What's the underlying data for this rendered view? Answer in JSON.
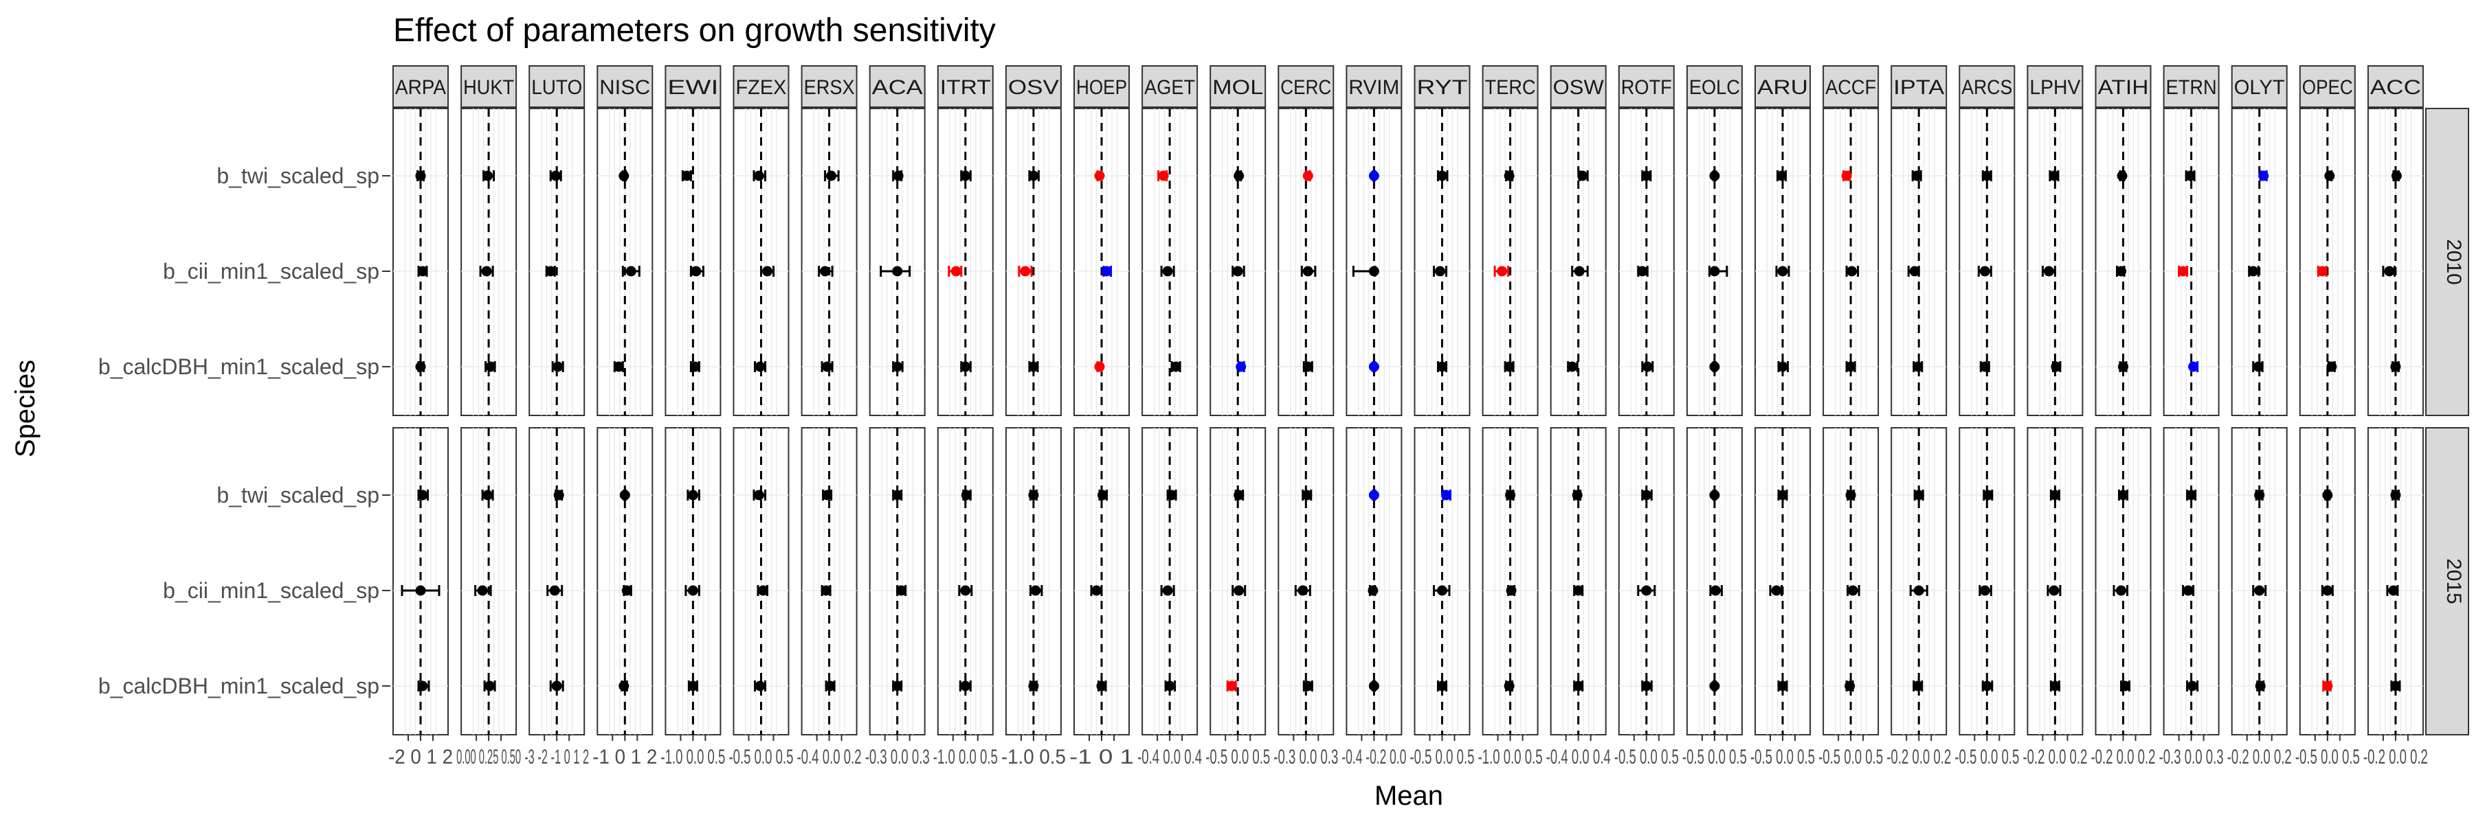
{
  "chart_data": {
    "type": "scatter",
    "title": "Effect of parameters on growth sensitivity",
    "xlabel": "Mean",
    "ylabel": "Species",
    "rows": [
      "b_twi_scaled_sp",
      "b_cii_min1_scaled_sp",
      "b_calcDBH_min1_scaled_sp"
    ],
    "years": [
      "2010",
      "2015"
    ],
    "species": [
      "ARPA",
      "HUKT",
      "LUTO",
      "NISC",
      "EWI",
      "FZEX",
      "ERSX",
      "ACA",
      "ITRT",
      "OSV",
      "HOEP",
      "AGET",
      "MOL",
      "CERC",
      "RVIM",
      "RYT",
      "TERC",
      "OSW",
      "ROTF",
      "EOLC",
      "ARU",
      "ACCF",
      "IPTA",
      "ARCS",
      "LPHV",
      "ATIH",
      "ETRN",
      "OLYT",
      "OPEC",
      "ACC"
    ],
    "xtick_labels": [
      "-2 0 1 2",
      "0.00 0.25 0.50",
      "-3 -2 -1 0 1 2",
      "-1 0 1 2",
      "-1.0 0.0 0.5",
      "-0.5 0.0 0.5",
      "-0.4 0.0 0.2",
      "-0.3 0.0 0.3",
      "-1.0 0.0 0.5",
      "-1.0 0.5",
      "-1 0 1",
      "-0.4 0.0 0.4",
      "-0.5 0.0 0.5",
      "-0.3 0.0 0.3",
      "-0.4 -0.2 0.0",
      "-0.5 0.0 0.5",
      "-1.0 0.0 0.5",
      "-0.4 0.0 0.4",
      "-0.5 0.0 0.5",
      "-0.5 0.0 0.5",
      "-0.5 0.0 0.5",
      "-0.5 0.0 0.5",
      "-0.2 0.0 0.2",
      "-0.5 0.0 0.5",
      "-0.2 0.0 0.2",
      "-0.2 0.0 0.2",
      "-0.3 0.0 0.3",
      "-0.2 0.0 0.2",
      "-0.5 0.0 0.5",
      "-0.2 0.0 0.2"
    ],
    "xlim": [
      -1,
      1
    ],
    "reference_line": 0,
    "legend": "none",
    "grid": true,
    "color_key": {
      "neutral": "#000000",
      "negative": "#ff0000",
      "positive": "#0000ff"
    },
    "points": {
      "2010": [
        [
          [
            0.0,
            -0.15,
            0.15,
            "k"
          ],
          [
            0.1,
            -0.1,
            0.3,
            "k"
          ],
          [
            0.0,
            -0.1,
            0.15,
            "k"
          ]
        ],
        [
          [
            -0.05,
            -0.25,
            0.25,
            "k"
          ],
          [
            -0.1,
            -0.4,
            0.2,
            "k"
          ],
          [
            0.1,
            -0.15,
            0.3,
            "k"
          ]
        ],
        [
          [
            -0.05,
            -0.3,
            0.2,
            "k"
          ],
          [
            -0.3,
            -0.5,
            -0.1,
            "k"
          ],
          [
            0.05,
            -0.2,
            0.3,
            "k"
          ]
        ],
        [
          [
            -0.05,
            -0.1,
            0.05,
            "k"
          ],
          [
            0.3,
            -0.1,
            0.7,
            "k"
          ],
          [
            -0.3,
            -0.5,
            -0.1,
            "k"
          ]
        ],
        [
          [
            -0.3,
            -0.5,
            -0.1,
            "k"
          ],
          [
            0.15,
            -0.1,
            0.5,
            "k"
          ],
          [
            0.1,
            -0.1,
            0.3,
            "k"
          ]
        ],
        [
          [
            -0.1,
            -0.35,
            0.2,
            "k"
          ],
          [
            0.3,
            0.0,
            0.6,
            "k"
          ],
          [
            -0.05,
            -0.3,
            0.2,
            "k"
          ]
        ],
        [
          [
            0.1,
            -0.2,
            0.45,
            "k"
          ],
          [
            -0.2,
            -0.5,
            0.15,
            "k"
          ],
          [
            -0.1,
            -0.35,
            0.15,
            "k"
          ]
        ],
        [
          [
            0.05,
            -0.2,
            0.2,
            "k"
          ],
          [
            0.0,
            -0.8,
            0.6,
            "k"
          ],
          [
            0.0,
            -0.2,
            0.25,
            "k"
          ]
        ],
        [
          [
            0.0,
            -0.2,
            0.25,
            "k"
          ],
          [
            -0.45,
            -0.8,
            -0.2,
            "r"
          ],
          [
            0.0,
            -0.2,
            0.25,
            "k"
          ]
        ],
        [
          [
            0.0,
            -0.2,
            0.25,
            "k"
          ],
          [
            -0.4,
            -0.7,
            -0.1,
            "r"
          ],
          [
            0.0,
            -0.2,
            0.2,
            "k"
          ]
        ],
        [
          [
            -0.1,
            -0.2,
            0.0,
            "r"
          ],
          [
            0.25,
            0.1,
            0.45,
            "b"
          ],
          [
            -0.1,
            -0.2,
            0.0,
            "r"
          ]
        ],
        [
          [
            -0.3,
            -0.55,
            -0.15,
            "r"
          ],
          [
            -0.1,
            -0.4,
            0.2,
            "k"
          ],
          [
            0.3,
            0.1,
            0.5,
            "k"
          ]
        ],
        [
          [
            0.05,
            -0.05,
            0.15,
            "k"
          ],
          [
            0.0,
            -0.25,
            0.3,
            "k"
          ],
          [
            0.15,
            0.05,
            0.3,
            "b"
          ]
        ],
        [
          [
            0.1,
            0.0,
            0.2,
            "r"
          ],
          [
            0.1,
            -0.2,
            0.45,
            "k"
          ],
          [
            0.1,
            -0.1,
            0.3,
            "k"
          ]
        ],
        [
          [
            0.0,
            -0.05,
            0.05,
            "b"
          ],
          [
            0.0,
            -1.0,
            0.05,
            "k"
          ],
          [
            0.0,
            -0.05,
            0.05,
            "b"
          ]
        ],
        [
          [
            0.0,
            -0.2,
            0.25,
            "k"
          ],
          [
            -0.1,
            -0.4,
            0.2,
            "k"
          ],
          [
            0.0,
            -0.2,
            0.2,
            "k"
          ]
        ],
        [
          [
            -0.05,
            -0.2,
            0.1,
            "k"
          ],
          [
            -0.4,
            -0.75,
            -0.1,
            "r"
          ],
          [
            -0.05,
            -0.25,
            0.15,
            "k"
          ]
        ],
        [
          [
            0.2,
            0.05,
            0.45,
            "k"
          ],
          [
            0.05,
            -0.3,
            0.45,
            "k"
          ],
          [
            -0.3,
            -0.5,
            -0.05,
            "k"
          ]
        ],
        [
          [
            0.0,
            -0.2,
            0.2,
            "k"
          ],
          [
            -0.2,
            -0.4,
            0.05,
            "k"
          ],
          [
            0.05,
            -0.2,
            0.3,
            "k"
          ]
        ],
        [
          [
            0.0,
            -0.05,
            0.05,
            "k"
          ],
          [
            0.0,
            -0.25,
            0.6,
            "k"
          ],
          [
            0.0,
            -0.05,
            0.05,
            "k"
          ]
        ],
        [
          [
            -0.05,
            -0.25,
            0.15,
            "k"
          ],
          [
            0.0,
            -0.3,
            0.3,
            "k"
          ],
          [
            0.0,
            -0.2,
            0.25,
            "k"
          ]
        ],
        [
          [
            -0.2,
            -0.35,
            -0.05,
            "r"
          ],
          [
            0.05,
            -0.2,
            0.35,
            "k"
          ],
          [
            0.0,
            -0.2,
            0.2,
            "k"
          ]
        ],
        [
          [
            -0.1,
            -0.3,
            0.1,
            "k"
          ],
          [
            -0.2,
            -0.5,
            0.0,
            "k"
          ],
          [
            -0.05,
            -0.25,
            0.15,
            "k"
          ]
        ],
        [
          [
            0.0,
            -0.2,
            0.2,
            "k"
          ],
          [
            -0.1,
            -0.4,
            0.2,
            "k"
          ],
          [
            -0.1,
            -0.3,
            0.1,
            "k"
          ]
        ],
        [
          [
            -0.05,
            -0.25,
            0.15,
            "k"
          ],
          [
            -0.3,
            -0.6,
            0.0,
            "k"
          ],
          [
            0.05,
            -0.1,
            0.25,
            "k"
          ]
        ],
        [
          [
            -0.05,
            -0.15,
            0.05,
            "k"
          ],
          [
            -0.1,
            -0.3,
            0.05,
            "k"
          ],
          [
            0.0,
            -0.15,
            0.15,
            "k"
          ]
        ],
        [
          [
            -0.05,
            -0.25,
            0.15,
            "k"
          ],
          [
            -0.4,
            -0.6,
            -0.2,
            "r"
          ],
          [
            0.1,
            0.0,
            0.3,
            "b"
          ]
        ],
        [
          [
            0.2,
            0.05,
            0.35,
            "b"
          ],
          [
            -0.3,
            -0.5,
            -0.05,
            "k"
          ],
          [
            -0.05,
            -0.3,
            0.15,
            "k"
          ]
        ],
        [
          [
            0.1,
            0.0,
            0.2,
            "k"
          ],
          [
            -0.25,
            -0.45,
            -0.05,
            "r"
          ],
          [
            0.2,
            0.05,
            0.35,
            "k"
          ]
        ],
        [
          [
            0.05,
            -0.1,
            0.15,
            "k"
          ],
          [
            -0.3,
            -0.6,
            -0.05,
            "k"
          ],
          [
            0.0,
            -0.15,
            0.15,
            "k"
          ]
        ]
      ],
      "2015": [
        [
          [
            0.1,
            -0.1,
            0.35,
            "k"
          ],
          [
            0.0,
            -0.9,
            0.9,
            "k"
          ],
          [
            0.1,
            -0.1,
            0.4,
            "k"
          ]
        ],
        [
          [
            -0.05,
            -0.3,
            0.2,
            "k"
          ],
          [
            -0.3,
            -0.65,
            0.1,
            "k"
          ],
          [
            0.05,
            -0.2,
            0.3,
            "k"
          ]
        ],
        [
          [
            0.1,
            -0.05,
            0.25,
            "k"
          ],
          [
            -0.1,
            -0.45,
            0.25,
            "k"
          ],
          [
            0.0,
            -0.3,
            0.3,
            "k"
          ]
        ],
        [
          [
            0.0,
            -0.05,
            0.05,
            "k"
          ],
          [
            0.1,
            -0.05,
            0.3,
            "k"
          ],
          [
            -0.05,
            -0.15,
            0.1,
            "k"
          ]
        ],
        [
          [
            0.0,
            -0.25,
            0.3,
            "k"
          ],
          [
            0.0,
            -0.35,
            0.3,
            "k"
          ],
          [
            0.0,
            -0.2,
            0.2,
            "k"
          ]
        ],
        [
          [
            -0.1,
            -0.35,
            0.2,
            "k"
          ],
          [
            0.1,
            -0.15,
            0.3,
            "k"
          ],
          [
            -0.05,
            -0.3,
            0.2,
            "k"
          ]
        ],
        [
          [
            -0.1,
            -0.3,
            0.1,
            "k"
          ],
          [
            -0.15,
            -0.35,
            0.05,
            "k"
          ],
          [
            0.05,
            -0.15,
            0.25,
            "k"
          ]
        ],
        [
          [
            0.0,
            -0.2,
            0.2,
            "k"
          ],
          [
            0.2,
            0.0,
            0.4,
            "k"
          ],
          [
            0.0,
            -0.2,
            0.2,
            "k"
          ]
        ],
        [
          [
            0.05,
            -0.1,
            0.25,
            "k"
          ],
          [
            0.0,
            -0.3,
            0.3,
            "k"
          ],
          [
            0.0,
            -0.25,
            0.25,
            "k"
          ]
        ],
        [
          [
            0.0,
            -0.15,
            0.15,
            "k"
          ],
          [
            0.1,
            -0.15,
            0.4,
            "k"
          ],
          [
            0.0,
            -0.15,
            0.15,
            "k"
          ]
        ],
        [
          [
            0.05,
            -0.1,
            0.25,
            "k"
          ],
          [
            -0.25,
            -0.5,
            0.0,
            "k"
          ],
          [
            0.0,
            -0.15,
            0.2,
            "k"
          ]
        ],
        [
          [
            0.1,
            -0.1,
            0.3,
            "k"
          ],
          [
            -0.1,
            -0.4,
            0.2,
            "k"
          ],
          [
            0.0,
            -0.2,
            0.25,
            "k"
          ]
        ],
        [
          [
            0.05,
            -0.1,
            0.25,
            "k"
          ],
          [
            0.05,
            -0.25,
            0.35,
            "k"
          ],
          [
            -0.3,
            -0.5,
            -0.1,
            "r"
          ]
        ],
        [
          [
            0.05,
            -0.15,
            0.25,
            "k"
          ],
          [
            -0.15,
            -0.5,
            0.2,
            "k"
          ],
          [
            0.1,
            -0.1,
            0.3,
            "k"
          ]
        ],
        [
          [
            0.0,
            -0.05,
            0.05,
            "b"
          ],
          [
            -0.05,
            -0.2,
            0.05,
            "k"
          ],
          [
            0.0,
            -0.05,
            0.05,
            "k"
          ]
        ],
        [
          [
            0.2,
            0.05,
            0.4,
            "b"
          ],
          [
            0.0,
            -0.4,
            0.35,
            "k"
          ],
          [
            0.0,
            -0.2,
            0.2,
            "k"
          ]
        ],
        [
          [
            0.0,
            -0.15,
            0.15,
            "k"
          ],
          [
            0.05,
            -0.1,
            0.2,
            "k"
          ],
          [
            -0.05,
            -0.2,
            0.1,
            "k"
          ]
        ],
        [
          [
            -0.05,
            -0.2,
            0.1,
            "k"
          ],
          [
            0.0,
            -0.2,
            0.2,
            "k"
          ],
          [
            0.0,
            -0.2,
            0.2,
            "k"
          ]
        ],
        [
          [
            0.0,
            -0.2,
            0.25,
            "k"
          ],
          [
            0.0,
            -0.4,
            0.4,
            "k"
          ],
          [
            0.0,
            -0.2,
            0.25,
            "k"
          ]
        ],
        [
          [
            0.0,
            -0.05,
            0.05,
            "k"
          ],
          [
            0.05,
            -0.2,
            0.35,
            "k"
          ],
          [
            0.0,
            -0.05,
            0.05,
            "k"
          ]
        ],
        [
          [
            0.0,
            -0.2,
            0.2,
            "k"
          ],
          [
            -0.3,
            -0.6,
            -0.05,
            "k"
          ],
          [
            0.0,
            -0.2,
            0.2,
            "k"
          ]
        ],
        [
          [
            0.0,
            -0.15,
            0.15,
            "k"
          ],
          [
            0.1,
            -0.15,
            0.4,
            "k"
          ],
          [
            -0.05,
            -0.2,
            0.1,
            "k"
          ]
        ],
        [
          [
            0.0,
            -0.2,
            0.2,
            "k"
          ],
          [
            0.0,
            -0.4,
            0.4,
            "k"
          ],
          [
            -0.05,
            -0.25,
            0.15,
            "k"
          ]
        ],
        [
          [
            0.05,
            -0.15,
            0.25,
            "k"
          ],
          [
            -0.1,
            -0.35,
            0.2,
            "k"
          ],
          [
            0.0,
            -0.2,
            0.25,
            "k"
          ]
        ],
        [
          [
            0.0,
            -0.2,
            0.2,
            "k"
          ],
          [
            -0.05,
            -0.35,
            0.25,
            "k"
          ],
          [
            0.0,
            -0.2,
            0.2,
            "k"
          ]
        ],
        [
          [
            0.0,
            -0.2,
            0.2,
            "k"
          ],
          [
            -0.1,
            -0.45,
            0.2,
            "k"
          ],
          [
            0.1,
            -0.1,
            0.3,
            "k"
          ]
        ],
        [
          [
            0.0,
            -0.2,
            0.2,
            "k"
          ],
          [
            -0.15,
            -0.4,
            0.1,
            "k"
          ],
          [
            0.05,
            -0.2,
            0.3,
            "k"
          ]
        ],
        [
          [
            0.0,
            -0.15,
            0.15,
            "k"
          ],
          [
            0.0,
            -0.3,
            0.3,
            "k"
          ],
          [
            0.05,
            -0.1,
            0.2,
            "k"
          ]
        ],
        [
          [
            0.0,
            -0.1,
            0.1,
            "k"
          ],
          [
            0.0,
            -0.25,
            0.25,
            "k"
          ],
          [
            0.0,
            -0.2,
            0.15,
            "r"
          ]
        ],
        [
          [
            0.0,
            -0.15,
            0.15,
            "k"
          ],
          [
            -0.1,
            -0.4,
            0.1,
            "k"
          ],
          [
            0.0,
            -0.2,
            0.2,
            "k"
          ]
        ]
      ]
    }
  }
}
